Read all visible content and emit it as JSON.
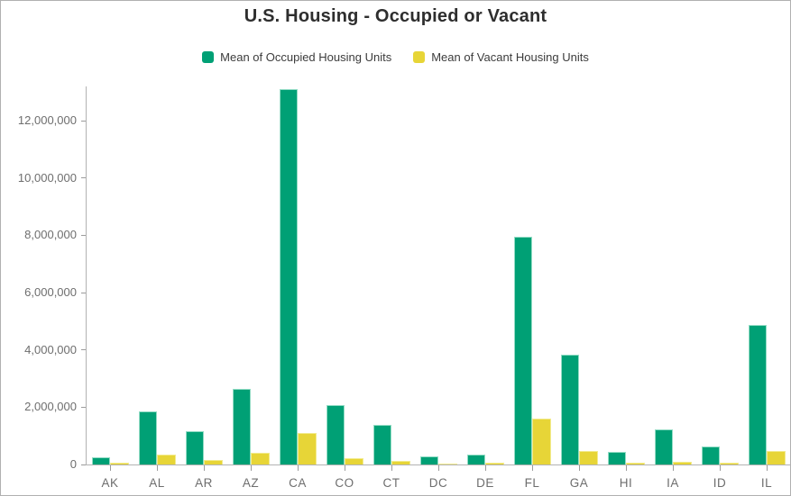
{
  "header": {
    "title": "U.S. Housing - Occupied or Vacant"
  },
  "chart_data": {
    "type": "bar",
    "title": "U.S. Housing - Occupied or Vacant",
    "xlabel": "",
    "ylabel": "",
    "grid": false,
    "legend_position": "top",
    "ylim": [
      0,
      13200000
    ],
    "yticks": [
      0,
      2000000,
      4000000,
      6000000,
      8000000,
      10000000,
      12000000
    ],
    "ytick_labels": [
      "0",
      "2,000,000",
      "4,000,000",
      "6,000,000",
      "8,000,000",
      "10,000,000",
      "12,000,000"
    ],
    "categories": [
      "AK",
      "AL",
      "AR",
      "AZ",
      "CA",
      "CO",
      "CT",
      "DC",
      "DE",
      "FL",
      "GA",
      "HI",
      "IA",
      "ID",
      "IL"
    ],
    "series": [
      {
        "key": "occupied",
        "name": "Mean of Occupied Housing Units",
        "color": "#00a075",
        "edge_color": "#93dcc5",
        "values": [
          250000,
          1860000,
          1165000,
          2640000,
          13120000,
          2090000,
          1385000,
          270000,
          350000,
          7950000,
          3820000,
          435000,
          1240000,
          620000,
          4860000
        ]
      },
      {
        "key": "vacant",
        "name": "Mean of Vacant Housing Units",
        "color": "#e7d537",
        "edge_color": "#f2eb8e",
        "values": [
          60000,
          350000,
          160000,
          410000,
          1100000,
          220000,
          135000,
          30000,
          60000,
          1590000,
          465000,
          65000,
          105000,
          65000,
          465000
        ]
      }
    ],
    "colors": {
      "axis_line": "#b3b3b3",
      "tick": "#9b9b9b",
      "axis_label": "#6e6e6e",
      "title_text": "#2e2e2e",
      "legend_text": "#3c3c3c"
    }
  }
}
